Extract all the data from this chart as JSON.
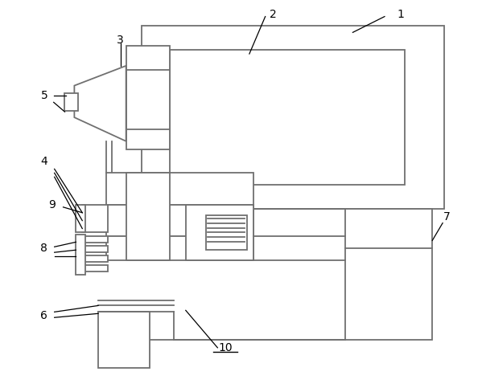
{
  "bg_color": "#ffffff",
  "lc": "#707070",
  "lw": 1.3,
  "fig_width": 5.99,
  "fig_height": 4.88
}
